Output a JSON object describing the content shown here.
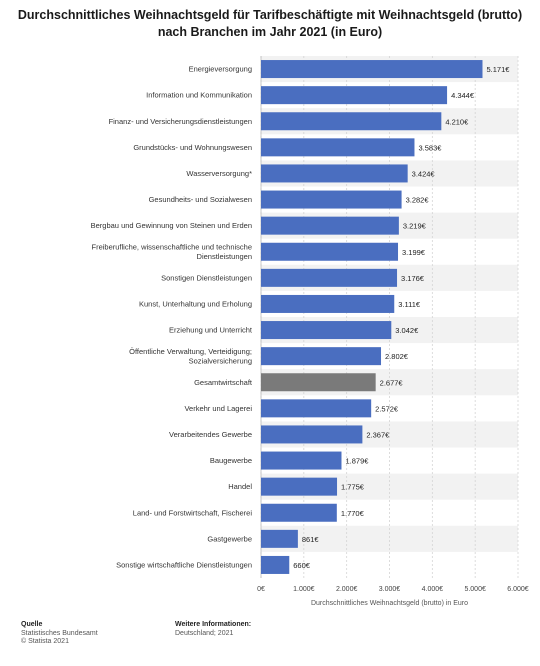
{
  "chart_data": {
    "type": "bar",
    "orientation": "horizontal",
    "title": "Durchschnittliches Weihnachtsgeld für Tarifbeschäftigte mit Weihnachtsgeld (brutto) nach Branchen im Jahr 2021 (in Euro)",
    "xlabel": "Durchschnittliches Weihnachtsgeld (brutto) in Euro",
    "ylabel": "",
    "xlim": [
      0,
      6000
    ],
    "xticks": [
      "0€",
      "1.000€",
      "2.000€",
      "3.000€",
      "4.000€",
      "5.000€",
      "6.000€"
    ],
    "grid": true,
    "bar_color": "#4a6ec0",
    "highlight_color": "#7a7a7a",
    "categories": [
      "Energieversorgung",
      "Information und Kommunikation",
      "Finanz- und Versicherungsdienstleistungen",
      "Grundstücks- und Wohnungswesen",
      "Wasserversorgung*",
      "Gesundheits- und Sozialwesen",
      "Bergbau und Gewinnung von Steinen und Erden",
      "Freiberufliche, wissenschaftliche und technische Dienstleistungen",
      "Sonstigen Dienstleistungen",
      "Kunst, Unterhaltung und Erholung",
      "Erziehung und Unterricht",
      "Öffentliche Verwaltung, Verteidigung; Sozialversicherung",
      "Gesamtwirtschaft",
      "Verkehr und Lagerei",
      "Verarbeitendes Gewerbe",
      "Baugewerbe",
      "Handel",
      "Land- und Forstwirtschaft, Fischerei",
      "Gastgewerbe",
      "Sonstige wirtschaftliche Dienstleistungen"
    ],
    "values": [
      5171,
      4344,
      4210,
      3583,
      3424,
      3282,
      3219,
      3199,
      3176,
      3111,
      3042,
      2802,
      2677,
      2572,
      2367,
      1879,
      1775,
      1770,
      861,
      660
    ],
    "value_labels": [
      "5.171€",
      "4.344€",
      "4.210€",
      "3.583€",
      "3.424€",
      "3.282€",
      "3.219€",
      "3.199€",
      "3.176€",
      "3.111€",
      "3.042€",
      "2.802€",
      "2.677€",
      "2.572€",
      "2.367€",
      "1.879€",
      "1.775€",
      "1.770€",
      "861€",
      "660€"
    ],
    "highlighted": [
      "Gesamtwirtschaft"
    ]
  },
  "footer": {
    "source_heading": "Quelle",
    "source_lines": [
      "Statistisches Bundesamt",
      "© Statista 2021"
    ],
    "info_heading": "Weitere Informationen:",
    "info_line": "Deutschland; 2021"
  }
}
